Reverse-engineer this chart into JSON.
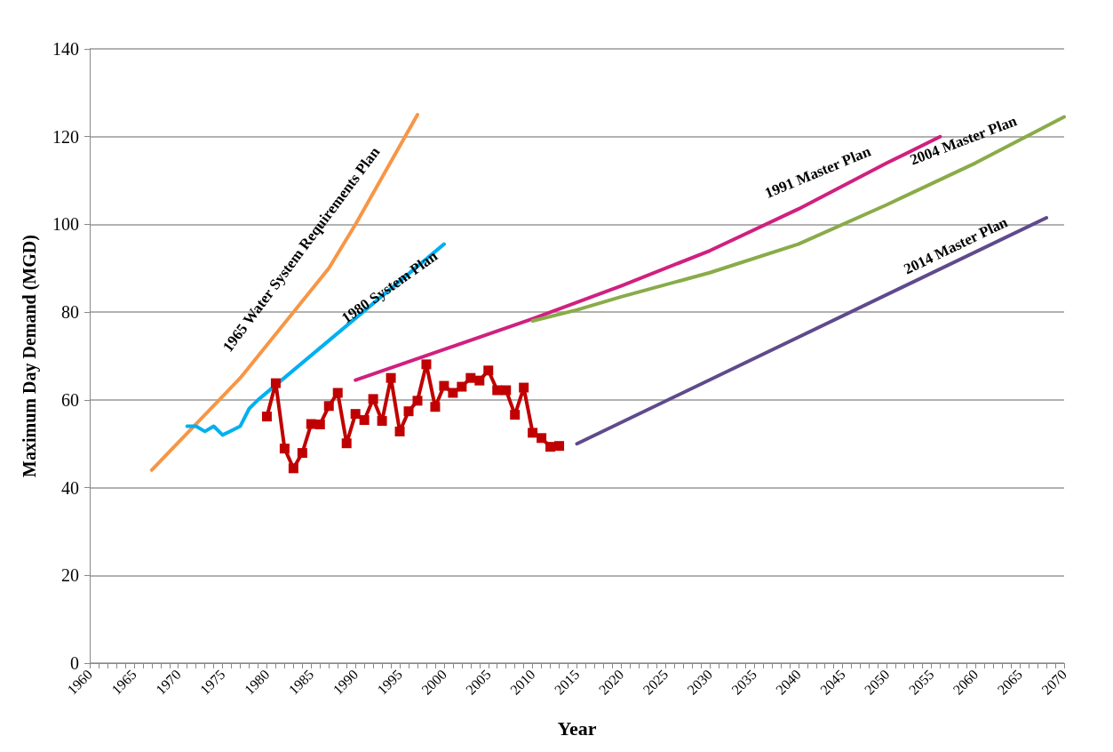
{
  "chart_data": {
    "type": "line",
    "xlabel": "Year",
    "ylabel": "Maximum Day Demand (MGD)",
    "xlim": [
      1960,
      2070
    ],
    "ylim": [
      0,
      140
    ],
    "yticks": [
      0,
      20,
      40,
      60,
      80,
      100,
      120,
      140
    ],
    "xticks": [
      1960,
      {
        "value": 1961,
        "label": null
      },
      {
        "value": 1962,
        "label": null
      },
      {
        "value": 1963,
        "label": null
      },
      {
        "value": 1964,
        "label": null
      },
      1965,
      {
        "value": 1966,
        "label": null
      },
      {
        "value": 1967,
        "label": null
      },
      {
        "value": 1968,
        "label": null
      },
      {
        "value": 1969,
        "label": null
      },
      1970,
      {
        "value": 1971,
        "label": null
      },
      {
        "value": 1972,
        "label": null
      },
      {
        "value": 1973,
        "label": null
      },
      {
        "value": 1974,
        "label": null
      },
      1975,
      {
        "value": 1976,
        "label": null
      },
      {
        "value": 1977,
        "label": null
      },
      {
        "value": 1978,
        "label": null
      },
      {
        "value": 1979,
        "label": null
      },
      1980,
      {
        "value": 1981,
        "label": null
      },
      {
        "value": 1982,
        "label": null
      },
      {
        "value": 1983,
        "label": null
      },
      {
        "value": 1984,
        "label": null
      },
      1985,
      {
        "value": 1986,
        "label": null
      },
      {
        "value": 1987,
        "label": null
      },
      {
        "value": 1988,
        "label": null
      },
      {
        "value": 1989,
        "label": null
      },
      1990,
      {
        "value": 1991,
        "label": null
      },
      {
        "value": 1992,
        "label": null
      },
      {
        "value": 1993,
        "label": null
      },
      {
        "value": 1994,
        "label": null
      },
      1995,
      {
        "value": 1996,
        "label": null
      },
      {
        "value": 1997,
        "label": null
      },
      {
        "value": 1998,
        "label": null
      },
      {
        "value": 1999,
        "label": null
      },
      2000,
      {
        "value": 2001,
        "label": null
      },
      {
        "value": 2002,
        "label": null
      },
      {
        "value": 2003,
        "label": null
      },
      {
        "value": 2004,
        "label": null
      },
      2005,
      {
        "value": 2006,
        "label": null
      },
      {
        "value": 2007,
        "label": null
      },
      {
        "value": 2008,
        "label": null
      },
      {
        "value": 2009,
        "label": null
      },
      2010,
      {
        "value": 2011,
        "label": null
      },
      {
        "value": 2012,
        "label": null
      },
      {
        "value": 2013,
        "label": null
      },
      {
        "value": 2014,
        "label": null
      },
      2015,
      {
        "value": 2016,
        "label": null
      },
      {
        "value": 2017,
        "label": null
      },
      {
        "value": 2018,
        "label": null
      },
      {
        "value": 2019,
        "label": null
      },
      2020,
      {
        "value": 2021,
        "label": null
      },
      {
        "value": 2022,
        "label": null
      },
      {
        "value": 2023,
        "label": null
      },
      {
        "value": 2024,
        "label": null
      },
      2025,
      {
        "value": 2026,
        "label": null
      },
      {
        "value": 2027,
        "label": null
      },
      {
        "value": 2028,
        "label": null
      },
      {
        "value": 2029,
        "label": null
      },
      2030,
      {
        "value": 2031,
        "label": null
      },
      {
        "value": 2032,
        "label": null
      },
      {
        "value": 2033,
        "label": null
      },
      {
        "value": 2034,
        "label": null
      },
      2035,
      {
        "value": 2036,
        "label": null
      },
      {
        "value": 2037,
        "label": null
      },
      {
        "value": 2038,
        "label": null
      },
      {
        "value": 2039,
        "label": null
      },
      2040,
      {
        "value": 2041,
        "label": null
      },
      {
        "value": 2042,
        "label": null
      },
      {
        "value": 2043,
        "label": null
      },
      {
        "value": 2044,
        "label": null
      },
      2045,
      {
        "value": 2046,
        "label": null
      },
      {
        "value": 2047,
        "label": null
      },
      {
        "value": 2048,
        "label": null
      },
      {
        "value": 2049,
        "label": null
      },
      2050,
      {
        "value": 2051,
        "label": null
      },
      {
        "value": 2052,
        "label": null
      },
      {
        "value": 2053,
        "label": null
      },
      {
        "value": 2054,
        "label": null
      },
      2055,
      {
        "value": 2056,
        "label": null
      },
      {
        "value": 2057,
        "label": null
      },
      {
        "value": 2058,
        "label": null
      },
      {
        "value": 2059,
        "label": null
      },
      2060,
      {
        "value": 2061,
        "label": null
      },
      {
        "value": 2062,
        "label": null
      },
      {
        "value": 2063,
        "label": null
      },
      {
        "value": 2064,
        "label": null
      },
      2065,
      {
        "value": 2066,
        "label": null
      },
      {
        "value": 2067,
        "label": null
      },
      {
        "value": 2068,
        "label": null
      },
      {
        "value": 2069,
        "label": null
      },
      2070
    ],
    "grid": "y",
    "marker": "none",
    "line_style": "solid",
    "series": [
      {
        "name": "1965 Water System Requirements Plan",
        "color": "#f79646",
        "x": [
          1967,
          1977,
          1987,
          1990,
          1997
        ],
        "values": [
          44,
          65,
          90,
          100,
          125
        ]
      },
      {
        "name": "1980 System Plan",
        "color": "#00b0f0",
        "x": [
          1971,
          1972,
          1973,
          1974,
          1975,
          1977,
          1978,
          1979,
          2000
        ],
        "values": [
          54,
          54,
          52.8,
          54,
          52,
          54,
          58,
          60,
          95.5
        ]
      },
      {
        "name": "1991 Master Plan",
        "color": "#d0207f",
        "x": [
          1990,
          2000,
          2010,
          2020,
          2030,
          2040,
          2050,
          2056
        ],
        "values": [
          64.5,
          71.5,
          78.5,
          86,
          94,
          103.5,
          114,
          120
        ]
      },
      {
        "name": "2004 Master Plan",
        "color": "#8aab48",
        "x": [
          2010,
          2015,
          2020,
          2030,
          2040,
          2050,
          2060,
          2070
        ],
        "values": [
          78,
          80.5,
          83.5,
          89,
          95.5,
          104.5,
          114,
          124.5
        ]
      },
      {
        "name": "2014 Master Plan",
        "color": "#5f4a8b",
        "x": [
          2015,
          2068
        ],
        "values": [
          50,
          101.5
        ]
      },
      {
        "color": "#c00000",
        "marker": "square",
        "x": [
          1980,
          1981,
          1982,
          1983,
          1984,
          1985,
          1986,
          1987,
          1988,
          1989,
          1990,
          1991,
          1992,
          1993,
          1994,
          1995,
          1996,
          1997,
          1998,
          1999,
          2000,
          2001,
          2002,
          2003,
          2004,
          2005,
          2006,
          2007,
          2008,
          2009,
          2010,
          2011,
          2012,
          2013
        ],
        "values": [
          56.2,
          63.8,
          48.9,
          44.4,
          47.9,
          54.5,
          54.4,
          58.6,
          61.6,
          50.1,
          56.8,
          55.4,
          60.2,
          55.2,
          65,
          52.8,
          57.4,
          59.8,
          68.1,
          58.4,
          63.2,
          61.6,
          63,
          65,
          64.4,
          66.7,
          62.2,
          62.2,
          56.6,
          62.8,
          52.5,
          51.3,
          49.3,
          49.5
        ]
      }
    ]
  }
}
